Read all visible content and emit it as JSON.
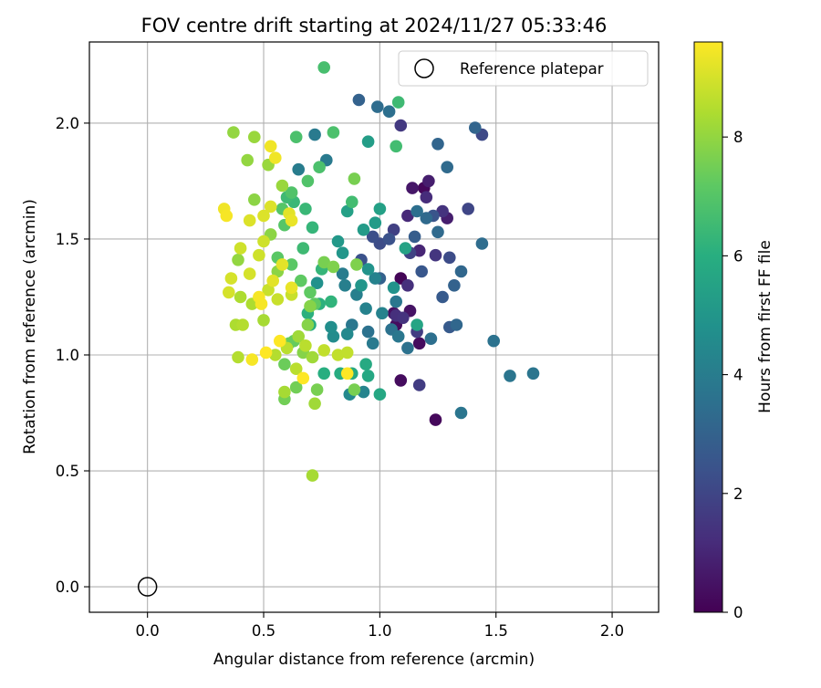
{
  "chart_data": {
    "type": "scatter",
    "title": "FOV centre drift starting at 2024/11/27 05:33:46",
    "xlabel": "Angular distance from reference (arcmin)",
    "ylabel": "Rotation from reference (arcmin)",
    "xlim": [
      -0.25,
      2.2
    ],
    "ylim": [
      -0.11,
      2.35
    ],
    "xticks": [
      0.0,
      0.5,
      1.0,
      1.5,
      2.0
    ],
    "xtick_labels": [
      "0.0",
      "0.5",
      "1.0",
      "1.5",
      "2.0"
    ],
    "yticks": [
      0.0,
      0.5,
      1.0,
      1.5,
      2.0
    ],
    "ytick_labels": [
      "0.0",
      "0.5",
      "1.0",
      "1.5",
      "2.0"
    ],
    "grid": true,
    "legend": {
      "position": "upper-right",
      "entries": [
        "Reference platepar"
      ]
    },
    "reference_point": {
      "x": 0.0,
      "y": 0.0,
      "label": "Reference platepar"
    },
    "colorbar": {
      "label": "Hours from first FF file",
      "colormap": "viridis",
      "range": [
        0,
        9.6
      ],
      "ticks": [
        0,
        2,
        4,
        6,
        8
      ],
      "tick_labels": [
        "0",
        "2",
        "4",
        "6",
        "8"
      ]
    },
    "points": [
      [
        1.09,
        1.33,
        0.1
      ],
      [
        1.19,
        1.72,
        0.2
      ],
      [
        1.24,
        0.72,
        0.2
      ],
      [
        1.17,
        1.05,
        0.3
      ],
      [
        1.07,
        1.13,
        0.3
      ],
      [
        1.09,
        0.89,
        0.3
      ],
      [
        1.06,
        1.18,
        0.4
      ],
      [
        1.13,
        1.19,
        0.5
      ],
      [
        1.14,
        1.72,
        0.6
      ],
      [
        1.29,
        1.59,
        0.8
      ],
      [
        1.21,
        1.75,
        0.8
      ],
      [
        1.17,
        1.45,
        1.0
      ],
      [
        1.12,
        1.6,
        1.1
      ],
      [
        1.2,
        1.68,
        1.2
      ],
      [
        1.12,
        1.3,
        1.3
      ],
      [
        1.07,
        1.17,
        1.3
      ],
      [
        1.1,
        1.16,
        1.4
      ],
      [
        1.27,
        1.62,
        1.4
      ],
      [
        1.24,
        1.43,
        1.5
      ],
      [
        1.09,
        1.99,
        1.6
      ],
      [
        1.17,
        0.87,
        1.7
      ],
      [
        1.16,
        1.1,
        1.7
      ],
      [
        1.06,
        1.54,
        1.8
      ],
      [
        1.13,
        1.44,
        1.9
      ],
      [
        1.38,
        1.63,
        2.0
      ],
      [
        1.44,
        1.95,
        2.1
      ],
      [
        1.3,
        1.42,
        2.2
      ],
      [
        1.0,
        1.48,
        2.2
      ],
      [
        0.97,
        1.51,
        2.3
      ],
      [
        0.92,
        1.41,
        2.4
      ],
      [
        1.04,
        1.5,
        2.4
      ],
      [
        1.23,
        1.6,
        2.5
      ],
      [
        1.18,
        1.36,
        2.6
      ],
      [
        1.27,
        1.25,
        2.7
      ],
      [
        1.3,
        1.12,
        2.7
      ],
      [
        1.15,
        1.51,
        2.8
      ],
      [
        1.32,
        1.3,
        3.0
      ],
      [
        1.0,
        1.33,
        3.0
      ],
      [
        0.91,
        2.1,
        3.0
      ],
      [
        1.41,
        1.98,
        3.1
      ],
      [
        1.25,
        1.91,
        3.1
      ],
      [
        1.33,
        1.13,
        3.2
      ],
      [
        1.35,
        1.36,
        3.2
      ],
      [
        1.29,
        1.81,
        3.3
      ],
      [
        1.25,
        1.53,
        3.3
      ],
      [
        1.2,
        1.59,
        3.3
      ],
      [
        1.44,
        1.48,
        3.4
      ],
      [
        0.99,
        2.07,
        3.4
      ],
      [
        1.04,
        2.05,
        3.5
      ],
      [
        1.16,
        1.62,
        3.5
      ],
      [
        1.22,
        1.07,
        3.5
      ],
      [
        1.12,
        1.03,
        3.6
      ],
      [
        1.05,
        1.11,
        3.6
      ],
      [
        0.95,
        1.1,
        3.6
      ],
      [
        1.49,
        1.06,
        3.6
      ],
      [
        1.56,
        0.91,
        3.7
      ],
      [
        1.66,
        0.92,
        3.7
      ],
      [
        1.35,
        0.75,
        3.7
      ],
      [
        1.08,
        1.08,
        3.8
      ],
      [
        1.07,
        1.23,
        3.8
      ],
      [
        0.97,
        1.05,
        3.9
      ],
      [
        0.88,
        1.13,
        3.8
      ],
      [
        0.72,
        1.95,
        3.9
      ],
      [
        0.65,
        1.8,
        4.0
      ],
      [
        0.77,
        1.84,
        3.9
      ],
      [
        0.84,
        1.35,
        4.0
      ],
      [
        0.85,
        1.3,
        4.1
      ],
      [
        0.9,
        1.26,
        4.1
      ],
      [
        0.94,
        1.2,
        4.2
      ],
      [
        0.98,
        1.33,
        4.2
      ],
      [
        1.01,
        1.18,
        4.2
      ],
      [
        0.93,
        0.84,
        4.3
      ],
      [
        0.87,
        0.83,
        4.5
      ],
      [
        0.86,
        1.09,
        4.5
      ],
      [
        0.8,
        1.08,
        4.6
      ],
      [
        0.79,
        1.12,
        4.7
      ],
      [
        0.73,
        1.31,
        4.8
      ],
      [
        0.95,
        1.37,
        4.9
      ],
      [
        1.06,
        1.29,
        4.9
      ],
      [
        0.92,
        1.3,
        5.0
      ],
      [
        0.84,
        1.44,
        5.0
      ],
      [
        0.82,
        1.49,
        5.1
      ],
      [
        0.93,
        1.54,
        5.2
      ],
      [
        0.98,
        1.57,
        5.2
      ],
      [
        0.95,
        1.92,
        5.3
      ],
      [
        1.0,
        1.63,
        5.4
      ],
      [
        0.86,
        1.62,
        5.4
      ],
      [
        1.11,
        1.46,
        5.5
      ],
      [
        1.16,
        1.13,
        5.6
      ],
      [
        1.0,
        0.83,
        5.7
      ],
      [
        0.95,
        0.91,
        5.7
      ],
      [
        0.94,
        0.96,
        5.8
      ],
      [
        0.88,
        0.92,
        5.8
      ],
      [
        0.83,
        0.92,
        5.9
      ],
      [
        0.76,
        0.92,
        6.0
      ],
      [
        0.7,
        1.13,
        6.0
      ],
      [
        0.69,
        1.18,
        6.1
      ],
      [
        0.74,
        1.22,
        6.1
      ],
      [
        0.79,
        1.23,
        6.2
      ],
      [
        0.75,
        1.37,
        6.3
      ],
      [
        0.71,
        1.55,
        6.3
      ],
      [
        0.68,
        1.63,
        6.4
      ],
      [
        0.63,
        1.66,
        6.4
      ],
      [
        0.6,
        1.68,
        6.5
      ],
      [
        0.67,
        1.46,
        6.5
      ],
      [
        1.08,
        2.09,
        6.5
      ],
      [
        1.07,
        1.9,
        6.6
      ],
      [
        0.88,
        1.66,
        6.6
      ],
      [
        0.76,
        2.24,
        6.7
      ],
      [
        0.74,
        1.81,
        6.8
      ],
      [
        0.8,
        1.96,
        6.8
      ],
      [
        0.64,
        1.94,
        6.8
      ],
      [
        0.69,
        1.75,
        6.9
      ],
      [
        0.62,
        1.7,
        6.9
      ],
      [
        0.58,
        1.63,
        7.0
      ],
      [
        0.59,
        1.56,
        7.0
      ],
      [
        0.56,
        1.42,
        7.1
      ],
      [
        0.62,
        1.39,
        7.1
      ],
      [
        0.66,
        1.32,
        7.2
      ],
      [
        0.7,
        1.27,
        7.2
      ],
      [
        0.72,
        1.22,
        7.2
      ],
      [
        0.63,
        1.06,
        7.3
      ],
      [
        0.61,
        1.05,
        7.3
      ],
      [
        0.59,
        0.96,
        7.4
      ],
      [
        0.64,
        0.86,
        7.5
      ],
      [
        0.59,
        0.81,
        7.5
      ],
      [
        0.73,
        0.85,
        7.6
      ],
      [
        0.89,
        0.85,
        7.6
      ],
      [
        0.89,
        1.76,
        7.6
      ],
      [
        0.76,
        1.4,
        7.6
      ],
      [
        0.8,
        1.38,
        7.7
      ],
      [
        0.9,
        1.39,
        7.7
      ],
      [
        0.7,
        1.21,
        7.8
      ],
      [
        0.69,
        1.13,
        7.8
      ],
      [
        0.67,
        1.01,
        7.8
      ],
      [
        0.56,
        1.36,
        7.9
      ],
      [
        0.53,
        1.52,
        7.9
      ],
      [
        0.46,
        1.67,
        7.9
      ],
      [
        0.43,
        1.84,
        8.0
      ],
      [
        0.39,
        1.41,
        8.0
      ],
      [
        0.37,
        1.96,
        8.0
      ],
      [
        0.46,
        1.94,
        8.1
      ],
      [
        0.52,
        1.82,
        8.1
      ],
      [
        0.58,
        1.73,
        8.1
      ],
      [
        0.65,
        1.08,
        8.2
      ],
      [
        0.71,
        0.99,
        8.2
      ],
      [
        0.72,
        0.79,
        8.2
      ],
      [
        0.71,
        0.48,
        8.3
      ],
      [
        0.59,
        0.84,
        8.3
      ],
      [
        0.5,
        1.15,
        8.3
      ],
      [
        0.45,
        1.22,
        8.4
      ],
      [
        0.4,
        1.25,
        8.4
      ],
      [
        0.38,
        1.13,
        8.4
      ],
      [
        0.41,
        1.13,
        8.5
      ],
      [
        0.39,
        0.99,
        8.5
      ],
      [
        0.55,
        1.0,
        8.5
      ],
      [
        0.6,
        1.03,
        8.6
      ],
      [
        0.64,
        0.94,
        8.6
      ],
      [
        0.68,
        1.04,
        8.6
      ],
      [
        0.76,
        1.02,
        8.7
      ],
      [
        0.82,
        1.0,
        8.7
      ],
      [
        0.86,
        1.01,
        8.7
      ],
      [
        0.52,
        1.28,
        8.8
      ],
      [
        0.56,
        1.24,
        8.8
      ],
      [
        0.62,
        1.26,
        8.8
      ],
      [
        0.48,
        1.43,
        8.9
      ],
      [
        0.5,
        1.49,
        8.9
      ],
      [
        0.4,
        1.46,
        8.9
      ],
      [
        0.36,
        1.33,
        9.0
      ],
      [
        0.35,
        1.27,
        9.0
      ],
      [
        0.44,
        1.35,
        9.0
      ],
      [
        0.44,
        1.58,
        9.1
      ],
      [
        0.53,
        1.64,
        9.1
      ],
      [
        0.5,
        1.6,
        9.1
      ],
      [
        0.61,
        1.61,
        9.2
      ],
      [
        0.58,
        1.39,
        9.2
      ],
      [
        0.54,
        1.32,
        9.2
      ],
      [
        0.62,
        1.29,
        9.3
      ],
      [
        0.62,
        1.58,
        9.3
      ],
      [
        0.53,
        1.9,
        9.4
      ],
      [
        0.55,
        1.85,
        9.4
      ],
      [
        0.33,
        1.63,
        9.4
      ],
      [
        0.34,
        1.6,
        9.5
      ],
      [
        0.48,
        1.25,
        9.5
      ],
      [
        0.49,
        1.22,
        9.5
      ],
      [
        0.45,
        0.98,
        9.5
      ],
      [
        0.67,
        0.9,
        9.6
      ],
      [
        0.86,
        0.92,
        9.6
      ],
      [
        0.57,
        1.06,
        9.6
      ],
      [
        0.51,
        1.01,
        9.6
      ]
    ]
  }
}
